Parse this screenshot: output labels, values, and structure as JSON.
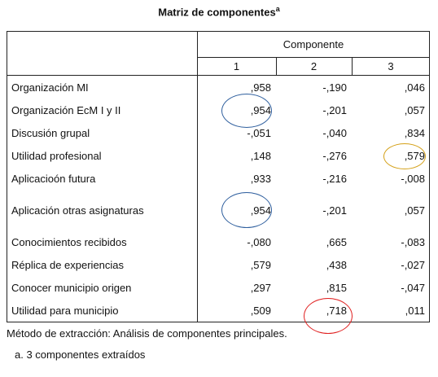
{
  "title": "Matriz de componentes",
  "title_note": "a",
  "table": {
    "group_header": "Componente",
    "columns": [
      "1",
      "2",
      "3"
    ],
    "rows": [
      [
        "Organización MI",
        ",958",
        "-,190",
        ",046"
      ],
      [
        "Organización EcM I y II",
        ",954",
        "-,201",
        ",057"
      ],
      [
        "Discusión grupal",
        "-,051",
        "-,040",
        ",834"
      ],
      [
        "Utilidad profesional",
        ",148",
        "-,276",
        ",579"
      ],
      [
        "Aplicacioón futura",
        ",933",
        "-,216",
        "-,008"
      ],
      [
        "Aplicación otras asignaturas",
        ",954",
        "-,201",
        ",057"
      ],
      [
        "Conocimientos recibidos",
        "-,080",
        ",665",
        "-,083"
      ],
      [
        "Réplica de experiencias",
        ",579",
        ",438",
        "-,027"
      ],
      [
        "Conocer municipio origen",
        ",297",
        ",815",
        "-,047"
      ],
      [
        "Utilidad para municipio",
        ",509",
        ",718",
        ",011"
      ]
    ]
  },
  "footnotes": [
    "Método de extracción: Análisis de componentes principales.",
    "a. 3 componentes extraídos"
  ]
}
